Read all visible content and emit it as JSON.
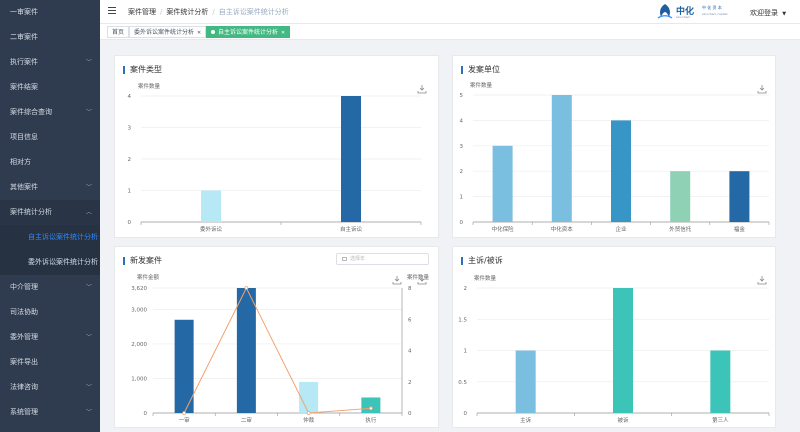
{
  "sidebar": {
    "items": [
      {
        "label": "一审案件",
        "level": 0,
        "chevron": false
      },
      {
        "label": "二审案件",
        "level": 0,
        "chevron": false
      },
      {
        "label": "执行案件",
        "level": 0,
        "chevron": true
      },
      {
        "label": "案件结案",
        "level": 0,
        "chevron": false
      },
      {
        "label": "案件综合查询",
        "level": 0,
        "chevron": true
      },
      {
        "label": "项目信息",
        "level": 0,
        "chevron": false
      },
      {
        "label": "相对方",
        "level": 0,
        "chevron": false
      },
      {
        "label": "其他案件",
        "level": 0,
        "chevron": true
      },
      {
        "label": "案件统计分析",
        "level": 0,
        "chevron": true,
        "open": true
      },
      {
        "label": "自主诉讼案件统计分析",
        "level": 1,
        "active": true
      },
      {
        "label": "委外诉讼案件统计分析",
        "level": 1
      },
      {
        "label": "中介管理",
        "level": 0,
        "chevron": true
      },
      {
        "label": "司法协助",
        "level": 0,
        "chevron": false
      },
      {
        "label": "委外管理",
        "level": 0,
        "chevron": true
      },
      {
        "label": "案件导出",
        "level": 0,
        "chevron": false
      },
      {
        "label": "法律咨询",
        "level": 0,
        "chevron": true
      },
      {
        "label": "系统管理",
        "level": 0,
        "chevron": true
      }
    ]
  },
  "header": {
    "breadcrumb": [
      "案件管理",
      "案件统计分析",
      "自主诉讼案件统计分析"
    ],
    "logo": {
      "cn": "中化",
      "sub": "sinochem",
      "cn2": "中 化 资 本",
      "sub2": "sinochem capital"
    },
    "welcome": "欢迎登录"
  },
  "tags": [
    {
      "label": "首页",
      "active": false
    },
    {
      "label": "委外诉讼案件统计分析",
      "active": false,
      "closable": true
    },
    {
      "label": "自主诉讼案件统计分析",
      "active": true,
      "closable": true
    }
  ],
  "colors": {
    "accent": "#42b983",
    "sidebar_bg": "#2f3b4e",
    "active_link": "#2f8bff",
    "line": "#f0a36f"
  },
  "cards": {
    "case_type": {
      "title": "案件类型",
      "ylabel": "案件数量"
    },
    "issuer": {
      "title": "发案单位",
      "ylabel": "案件数量"
    },
    "new_cases": {
      "title": "新发案件",
      "ylabel_left": "案件金额",
      "ylabel_right": "案件数量",
      "date_placeholder": "选择年"
    },
    "plaintiff": {
      "title": "主诉/被诉",
      "ylabel": "案件数量"
    }
  },
  "chart_data": [
    {
      "type": "bar",
      "title": "案件类型",
      "ylabel": "案件数量",
      "categories": [
        "委外诉讼",
        "自主诉讼"
      ],
      "values": [
        1,
        4
      ],
      "colors": [
        "#b6e8f5",
        "#2469a6"
      ],
      "ylim": [
        0,
        4
      ],
      "yticks": [
        0,
        1,
        2,
        3,
        4
      ]
    },
    {
      "type": "bar",
      "title": "发案单位",
      "ylabel": "案件数量",
      "categories": [
        "中化保险",
        "中化资本",
        "企业",
        "外贸信托",
        "福金"
      ],
      "values": [
        3,
        5,
        4,
        2,
        2
      ],
      "colors": [
        "#7bbfe0",
        "#7bbfe0",
        "#3796c6",
        "#8fd1b5",
        "#2469a6"
      ],
      "ylim": [
        0,
        5
      ],
      "yticks": [
        0,
        1,
        2,
        3,
        4,
        5
      ]
    },
    {
      "type": "bar",
      "title": "新发案件",
      "categories": [
        "一审",
        "二审",
        "仲裁",
        "执行"
      ],
      "series": [
        {
          "name": "案件金额",
          "type": "bar",
          "values": [
            2700,
            3620,
            900,
            450
          ],
          "colors": [
            "#2469a6",
            "#2469a6",
            "#b6e8f5",
            "#3cc4b9"
          ],
          "axis": "left"
        },
        {
          "name": "案件数量",
          "type": "line",
          "values": [
            0,
            8,
            0,
            0.3
          ],
          "color": "#f0a36f",
          "axis": "right"
        }
      ],
      "ylim_left": [
        0,
        3620
      ],
      "yticks_left": [
        0,
        1000,
        2000,
        3000,
        3620
      ],
      "ytick_labels_left": [
        "0",
        "1,000",
        "2,000",
        "3,000",
        "3,620"
      ],
      "ylim_right": [
        0,
        8
      ],
      "yticks_right": [
        0,
        2,
        4,
        6,
        8
      ]
    },
    {
      "type": "bar",
      "title": "主诉/被诉",
      "ylabel": "案件数量",
      "categories": [
        "主诉",
        "被诉",
        "第三人"
      ],
      "values": [
        1,
        2,
        1
      ],
      "colors": [
        "#7bbfe0",
        "#3cc4b9",
        "#3cc4b9"
      ],
      "ylim": [
        0,
        2
      ],
      "yticks": [
        0,
        0.5,
        1,
        1.5,
        2
      ]
    }
  ]
}
